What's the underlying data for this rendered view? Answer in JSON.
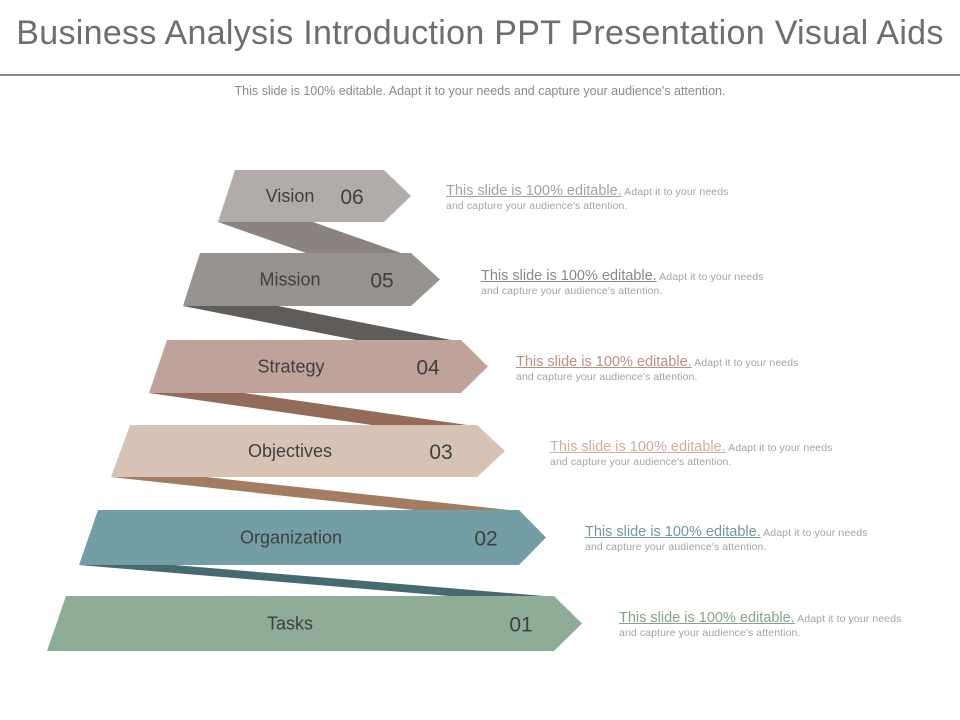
{
  "slide": {
    "title": "Business Analysis Introduction PPT Presentation Visual Aids",
    "subtitle": "This slide is 100% editable. Adapt it to your needs and capture your audience's attention."
  },
  "steps": [
    {
      "label": "Vision",
      "number": "06",
      "color": "#b1aca9",
      "connector": "#8a8380",
      "lead": "This slide is 100% editable.",
      "text": "Adapt it to your needs and capture your audience's attention.",
      "lead_color": "#a5a09d"
    },
    {
      "label": "Mission",
      "number": "05",
      "color": "#97938f",
      "connector": "#605c59",
      "lead": "This slide is 100% editable.",
      "text": "Adapt it to your needs and capture your audience's attention.",
      "lead_color": "#8b8784"
    },
    {
      "label": "Strategy",
      "number": "04",
      "color": "#bfa39a",
      "connector": "#946a58",
      "lead": "This slide is 100% editable.",
      "text": "Adapt it to your needs and capture your audience's attention.",
      "lead_color": "#b88f83"
    },
    {
      "label": "Objectives",
      "number": "03",
      "color": "#d7c3b6",
      "connector": "#a47c61",
      "lead": "This slide is 100% editable.",
      "text": "Adapt it to your needs and capture your audience's attention.",
      "lead_color": "#c8b0a2"
    },
    {
      "label": "Organization",
      "number": "02",
      "color": "#739ea5",
      "connector": "#456a70",
      "lead": "This slide is 100% editable.",
      "text": "Adapt it to your needs and capture your audience's attention.",
      "lead_color": "#6f97a0"
    },
    {
      "label": "Tasks",
      "number": "01",
      "color": "#8fad96",
      "connector": "#8fad96",
      "lead": "This slide is 100% editable.",
      "text": "Adapt it to your needs and capture your audience's attention.",
      "lead_color": "#86a48d"
    }
  ]
}
